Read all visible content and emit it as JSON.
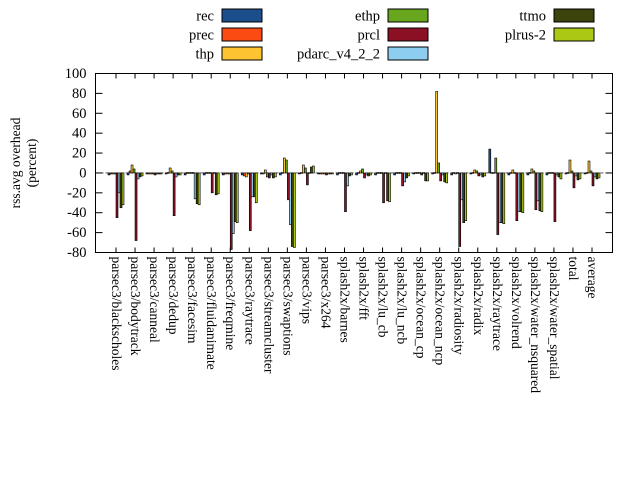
{
  "figure": {
    "ylabel_line1": "rss.avg overhead",
    "ylabel_line2": "(percent)"
  },
  "chart_data": {
    "type": "bar",
    "title": "",
    "xlabel": "",
    "ylabel": "rss.avg overhead (percent)",
    "ylim": [
      -80,
      100
    ],
    "ytick_step": 20,
    "grid": false,
    "legend_position": "top",
    "zero_axis": true,
    "categories": [
      "parsec3/blackscholes",
      "parsec3/bodytrack",
      "parsec3/canneal",
      "parsec3/dedup",
      "parsec3/facesim",
      "parsec3/fluidanimate",
      "parsec3/freqmine",
      "parsec3/raytrace",
      "parsec3/streamcluster",
      "parsec3/swaptions",
      "parsec3/vips",
      "parsec3/x264",
      "splash2x/barnes",
      "splash2x/fft",
      "splash2x/lu_cb",
      "splash2x/lu_ncb",
      "splash2x/ocean_cp",
      "splash2x/ocean_ncp",
      "splash2x/radiosity",
      "splash2x/radix",
      "splash2x/raytrace",
      "splash2x/volrend",
      "splash2x/water_nsquared",
      "splash2x/water_spatial",
      "total",
      "average"
    ],
    "series": [
      {
        "name": "rec",
        "color": "#1a4f8c",
        "values": [
          -2,
          -2,
          -1,
          -1,
          -2,
          -2,
          -2,
          -2,
          -1,
          -2,
          -1,
          -1,
          -2,
          -2,
          -2,
          -2,
          -1,
          -1,
          -2,
          -1,
          24,
          -2,
          -2,
          -2,
          -1,
          -1
        ]
      },
      {
        "name": "prec",
        "color": "#fb4a12",
        "values": [
          -1,
          2,
          -1,
          0,
          0,
          0,
          -1,
          -3,
          -1,
          0,
          0,
          -1,
          0,
          0,
          0,
          0,
          0,
          0,
          0,
          0,
          0,
          0,
          0,
          0,
          0,
          0
        ]
      },
      {
        "name": "thp",
        "color": "#fdc431",
        "values": [
          -1,
          8,
          -1,
          5,
          0,
          0,
          -1,
          -4,
          3,
          15,
          8,
          -1,
          0,
          2,
          0,
          0,
          0,
          82,
          -1,
          3,
          0,
          3,
          4,
          0,
          13,
          12
        ]
      },
      {
        "name": "ethp",
        "color": "#68a61e",
        "values": [
          -1,
          4,
          -1,
          2,
          0,
          0,
          -1,
          -1,
          -4,
          13,
          5,
          -1,
          0,
          4,
          0,
          0,
          0,
          10,
          0,
          2,
          15,
          0,
          2,
          0,
          2,
          2
        ]
      },
      {
        "name": "prcl",
        "color": "#8c1023",
        "values": [
          -45,
          -68,
          -2,
          -43,
          0,
          -20,
          -77,
          -58,
          -5,
          -27,
          -12,
          -2,
          -39,
          -5,
          -30,
          -13,
          -2,
          -8,
          -74,
          -3,
          -62,
          -48,
          -37,
          -49,
          -15,
          -13
        ]
      },
      {
        "name": "pdarc_v4_2_2",
        "color": "#8dcdf0",
        "values": [
          -20,
          -6,
          -1,
          -4,
          -26,
          0,
          -61,
          -24,
          -2,
          -52,
          0,
          -1,
          -13,
          -2,
          0,
          -9,
          0,
          -2,
          -27,
          -2,
          -50,
          -39,
          -28,
          -2,
          -3,
          -4
        ]
      },
      {
        "name": "ttmo",
        "color": "#3d430d",
        "values": [
          -35,
          -4,
          -1,
          -2,
          -31,
          -22,
          -49,
          -24,
          -5,
          -74,
          6,
          -1,
          -3,
          -3,
          -28,
          -5,
          -8,
          -9,
          -50,
          -4,
          -50,
          -39,
          -38,
          -4,
          -7,
          -6
        ]
      },
      {
        "name": "plrus-2",
        "color": "#abc913",
        "values": [
          -32,
          -3,
          -1,
          -2,
          -32,
          -21,
          -50,
          -30,
          -4,
          -75,
          7,
          -1,
          -2,
          -2,
          -29,
          -3,
          -8,
          -10,
          -48,
          -3,
          -51,
          -40,
          -39,
          -6,
          -6,
          -5
        ]
      }
    ]
  }
}
